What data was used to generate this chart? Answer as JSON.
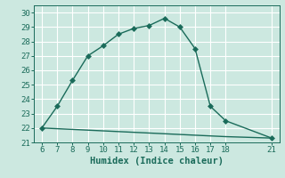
{
  "xlabel": "Humidex (Indice chaleur)",
  "bg_color": "#cce8e0",
  "grid_color": "#ffffff",
  "line_color": "#1a6b5a",
  "line1_x": [
    6,
    7,
    8,
    9,
    10,
    11,
    12,
    13,
    14,
    15,
    16,
    17,
    18,
    21
  ],
  "line1_y": [
    22.0,
    23.5,
    25.3,
    27.0,
    27.7,
    28.5,
    28.9,
    29.1,
    29.6,
    29.0,
    27.5,
    23.5,
    22.5,
    21.3
  ],
  "line2_x": [
    6,
    7,
    8,
    9,
    10,
    11,
    12,
    13,
    14,
    15,
    16,
    17,
    18,
    21
  ],
  "line2_y": [
    22.0,
    21.95,
    21.9,
    21.85,
    21.8,
    21.75,
    21.7,
    21.65,
    21.6,
    21.55,
    21.5,
    21.45,
    21.4,
    21.3
  ],
  "xlim": [
    5.5,
    21.5
  ],
  "ylim": [
    21.0,
    30.5
  ],
  "yticks": [
    21,
    22,
    23,
    24,
    25,
    26,
    27,
    28,
    29,
    30
  ],
  "xticks": [
    6,
    7,
    8,
    9,
    10,
    11,
    12,
    13,
    14,
    15,
    16,
    17,
    18,
    21
  ],
  "marker_size": 3,
  "line_width": 1.0,
  "tick_labelsize": 6.5,
  "xlabel_fontsize": 7.5
}
